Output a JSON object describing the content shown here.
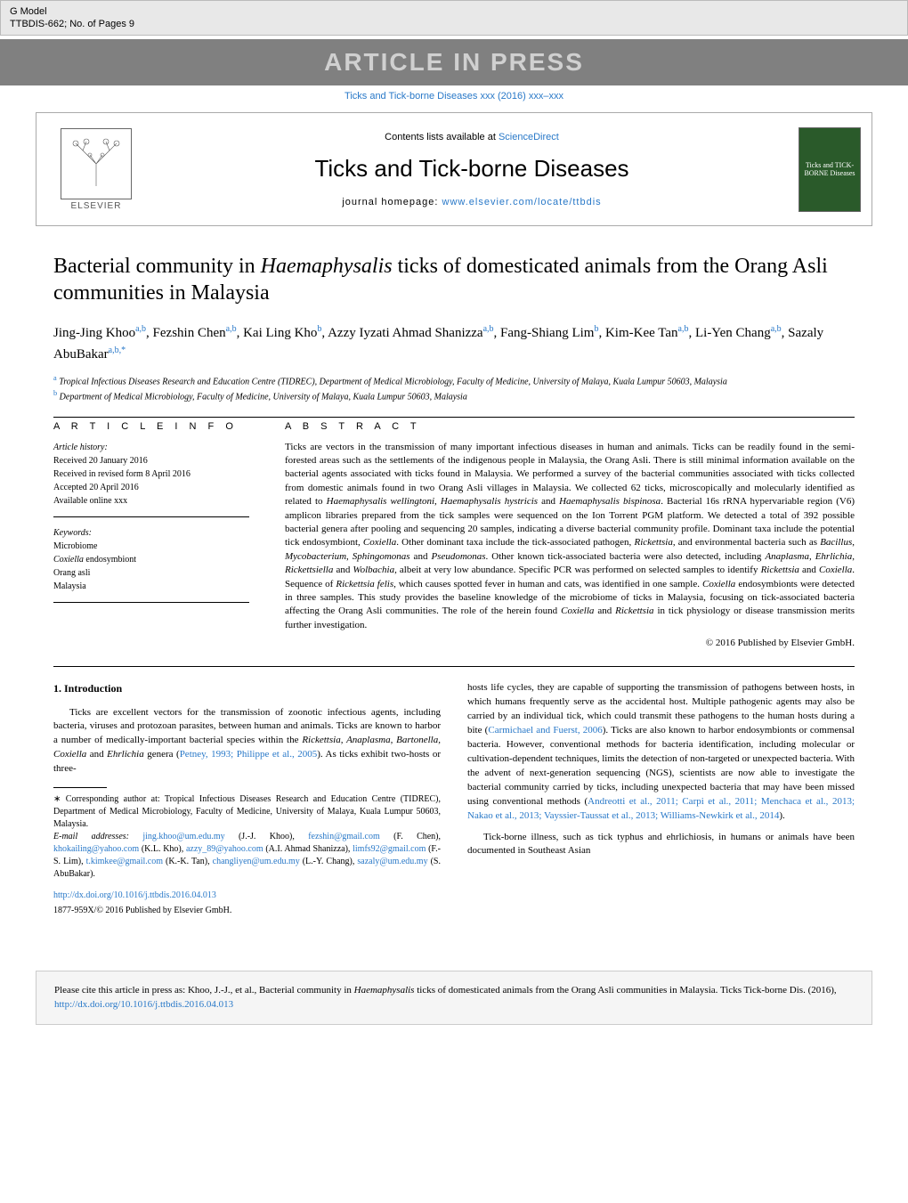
{
  "topbar": {
    "line1": "G Model",
    "line2": "TTBDIS-662;   No. of Pages 9"
  },
  "press_banner": "ARTICLE IN PRESS",
  "journal_link": "Ticks and Tick-borne Diseases xxx (2016) xxx–xxx",
  "header": {
    "contents_prefix": "Contents lists available at ",
    "contents_link": "ScienceDirect",
    "journal_title": "Ticks and Tick-borne Diseases",
    "homepage_prefix": "journal homepage: ",
    "homepage_link": "www.elsevier.com/locate/ttbdis",
    "elsevier_label": "ELSEVIER",
    "cover_text": "Ticks and TICK-BORNE Diseases"
  },
  "article": {
    "title_pre": "Bacterial community in ",
    "title_italic": "Haemaphysalis",
    "title_post": " ticks of domesticated animals from the Orang Asli communities in Malaysia",
    "authors_html": "Jing-Jing Khoo|a,b|, Fezshin Chen|a,b|, Kai Ling Kho|b|, Azzy Iyzati Ahmad Shanizza|a,b|, Fang-Shiang Lim|b|, Kim-Kee Tan|a,b|, Li-Yen Chang|a,b|, Sazaly AbuBakar|a,b,*|",
    "affiliations": [
      {
        "sup": "a",
        "text": " Tropical Infectious Diseases Research and Education Centre (TIDREC), Department of Medical Microbiology, Faculty of Medicine, University of Malaya, Kuala Lumpur 50603, Malaysia"
      },
      {
        "sup": "b",
        "text": " Department of Medical Microbiology, Faculty of Medicine, University of Malaya, Kuala Lumpur 50603, Malaysia"
      }
    ]
  },
  "info": {
    "section_label": "A R T I C L E   I N F O",
    "history_heading": "Article history:",
    "history_lines": [
      "Received 20 January 2016",
      "Received in revised form 8 April 2016",
      "Accepted 20 April 2016",
      "Available online xxx"
    ],
    "keywords_heading": "Keywords:",
    "keywords": [
      "Microbiome",
      "Coxiella endosymbiont",
      "Orang asli",
      "Malaysia"
    ]
  },
  "abstract": {
    "section_label": "A B S T R A C T",
    "text": "Ticks are vectors in the transmission of many important infectious diseases in human and animals. Ticks can be readily found in the semi-forested areas such as the settlements of the indigenous people in Malaysia, the Orang Asli. There is still minimal information available on the bacterial agents associated with ticks found in Malaysia. We performed a survey of the bacterial communities associated with ticks collected from domestic animals found in two Orang Asli villages in Malaysia. We collected 62 ticks, microscopically and molecularly identified as related to <em>Haemaphysalis wellingtoni</em>, <em>Haemaphysalis hystricis</em> and <em>Haemaphysalis bispinosa</em>. Bacterial 16s rRNA hypervariable region (V6) amplicon libraries prepared from the tick samples were sequenced on the Ion Torrent PGM platform. We detected a total of 392 possible bacterial genera after pooling and sequencing 20 samples, indicating a diverse bacterial community profile. Dominant taxa include the potential tick endosymbiont, <em>Coxiella</em>. Other dominant taxa include the tick-associated pathogen, <em>Rickettsia</em>, and environmental bacteria such as <em>Bacillus</em>, <em>Mycobacterium</em>, <em>Sphingomonas</em> and <em>Pseudomonas</em>. Other known tick-associated bacteria were also detected, including <em>Anaplasma</em>, <em>Ehrlichia</em>, <em>Rickettsiella</em> and <em>Wolbachia</em>, albeit at very low abundance. Specific PCR was performed on selected samples to identify <em>Rickettsia</em> and <em>Coxiella</em>. Sequence of <em>Rickettsia felis</em>, which causes spotted fever in human and cats, was identified in one sample. <em>Coxiella</em> endosymbionts were detected in three samples. This study provides the baseline knowledge of the microbiome of ticks in Malaysia, focusing on tick-associated bacteria affecting the Orang Asli communities. The role of the herein found <em>Coxiella</em> and <em>Rickettsia</em> in tick physiology or disease transmission merits further investigation.",
    "copyright": "© 2016 Published by Elsevier GmbH."
  },
  "intro": {
    "heading": "1.  Introduction",
    "p1_pre": "Ticks are excellent vectors for the transmission of zoonotic infectious agents, including bacteria, viruses and protozoan parasites, between human and animals. Ticks are known to harbor a number of medically-important bacterial species within the ",
    "p1_italic": "Rickettsia, Anaplasma, Bartonella, Coxiella",
    "p1_mid": " and ",
    "p1_italic2": "Ehrlichia",
    "p1_post": " genera (",
    "p1_cite": "Petney, 1993; Philippe et al., 2005",
    "p1_end": "). As ticks exhibit two-hosts or three-"
  },
  "col2": {
    "p1_pre": "hosts life cycles, they are capable of supporting the transmission of pathogens between hosts, in which humans frequently serve as the accidental host. Multiple pathogenic agents may also be carried by an individual tick, which could transmit these pathogens to the human hosts during a bite (",
    "p1_cite1": "Carmichael and Fuerst, 2006",
    "p1_mid": "). Ticks are also known to harbor endosymbionts or commensal bacteria. However, conventional methods for bacteria identification, including molecular or cultivation-dependent techniques, limits the detection of non-targeted or unexpected bacteria. With the advent of next-generation sequencing (NGS), scientists are now able to investigate the bacterial community carried by ticks, including unexpected bacteria that may have been missed using conventional methods (",
    "p1_cite2": "Andreotti et al., 2011; Carpi et al., 2011; Menchaca et al., 2013; Nakao et al., 2013; Vayssier-Taussat et al., 2013; Williams-Newkirk et al., 2014",
    "p1_end": ").",
    "p2": "Tick-borne illness, such as tick typhus and ehrlichiosis, in humans or animals have been documented in Southeast Asian"
  },
  "footnotes": {
    "corr_pre": "∗ Corresponding author at: Tropical Infectious Diseases Research and Education Centre (TIDREC), Department of Medical Microbiology, Faculty of Medicine, University of Malaya, Kuala Lumpur 50603, Malaysia.",
    "email_label": "E-mail addresses: ",
    "emails_html": "<a>jing.khoo@um.edu.my</a> (J.-J. Khoo), <a>fezshin@gmail.com</a> (F. Chen), <a>khokailing@yahoo.com</a> (K.L. Kho), <a>azzy_89@yahoo.com</a> (A.I. Ahmad Shanizza), <a>limfs92@gmail.com</a> (F.-S. Lim), <a>t.kimkee@gmail.com</a> (K.-K. Tan), <a>changliyen@um.edu.my</a> (L.-Y. Chang), <a>sazaly@um.edu.my</a> (S. AbuBakar).",
    "doi": "http://dx.doi.org/10.1016/j.ttbdis.2016.04.013",
    "issn": "1877-959X/© 2016 Published by Elsevier GmbH."
  },
  "bottom_cite": {
    "pre": "Please cite this article in press as: Khoo, J.-J., et al., Bacterial community in ",
    "italic": "Haemaphysalis",
    "mid": " ticks of domesticated animals from the Orang Asli communities in Malaysia. Ticks Tick-borne Dis. (2016), ",
    "link": "http://dx.doi.org/10.1016/j.ttbdis.2016.04.013"
  }
}
